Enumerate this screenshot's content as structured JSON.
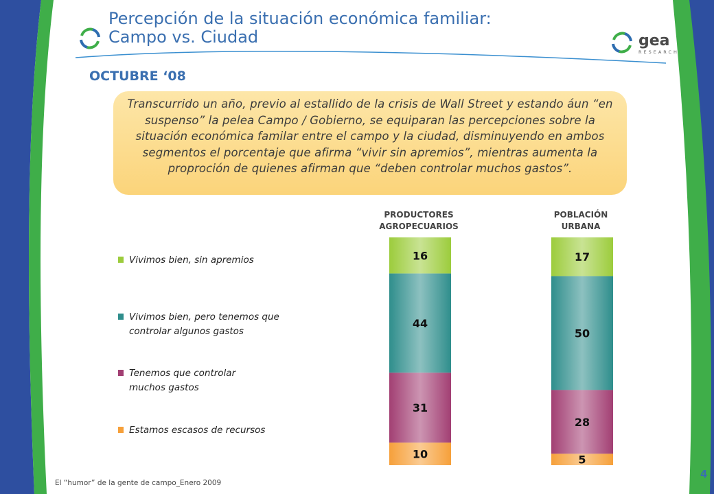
{
  "slide": {
    "title_line1": "Percepción de la  situación económica familiar:",
    "title_line2": "Campo vs. Ciudad",
    "subtitle": "OCTUBRE ‘08",
    "callout": "Transcurrido un año, previo al estallido de la crisis de Wall Street y estando áun “en suspenso” la pelea Campo / Gobierno, se equiparan las percepciones sobre la situación económica familar entre el campo y la ciudad, disminuyendo en ambos segmentos el porcentaje que afirma “vivir sin apremios”, mientras aumenta la proproción de quienes afirman que “deben controlar muchos gastos”.",
    "footer": "El “humor” de la gente de campo_Enero 2009",
    "page_number": "4",
    "logo_word": "gea",
    "logo_sub": "RESEARCH"
  },
  "colors": {
    "accent_blue": "#2e4fa0",
    "accent_green": "#3fae49",
    "title_blue": "#3a6fb0",
    "callout_bg": "#fbd47a"
  },
  "chart_data": {
    "type": "bar",
    "stacked": true,
    "categories": [
      "PRODUCTORES\nAGROPECUARIOS",
      "POBLACIÓN\nURBANA"
    ],
    "series": [
      {
        "name": "Vivimos bien, sin apremios",
        "values": [
          16,
          17
        ],
        "color": "#9ccc3c"
      },
      {
        "name": "Vivimos bien, pero tenemos que controlar algunos gastos",
        "values": [
          44,
          50
        ],
        "color": "#2f8e8c"
      },
      {
        "name": "Tenemos que controlar muchos gastos",
        "values": [
          31,
          28
        ],
        "color": "#a23f73"
      },
      {
        "name": "Estamos escasos de recursos",
        "values": [
          10,
          5
        ],
        "color": "#f6a03a"
      }
    ],
    "legend_position": "left",
    "grid": false
  }
}
